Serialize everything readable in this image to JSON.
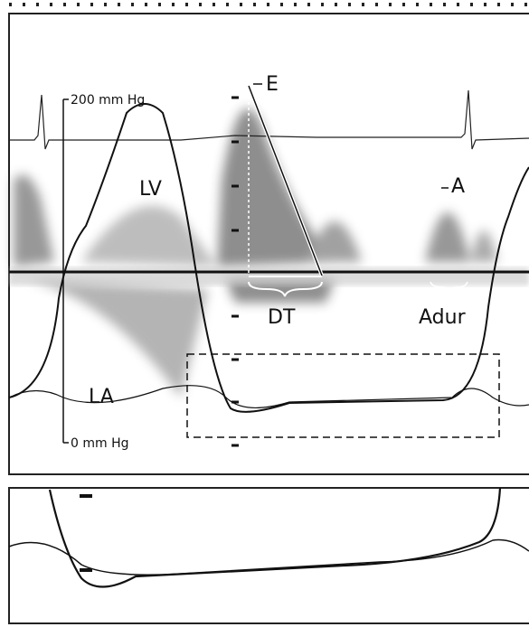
{
  "labels": {
    "e_wave": "E",
    "scale_top": "200 mm Hg",
    "lv": "LV",
    "a_wave": "A",
    "dt": "DT",
    "adur": "Adur",
    "la": "LA",
    "scale_bottom": "0 mm Hg"
  }
}
